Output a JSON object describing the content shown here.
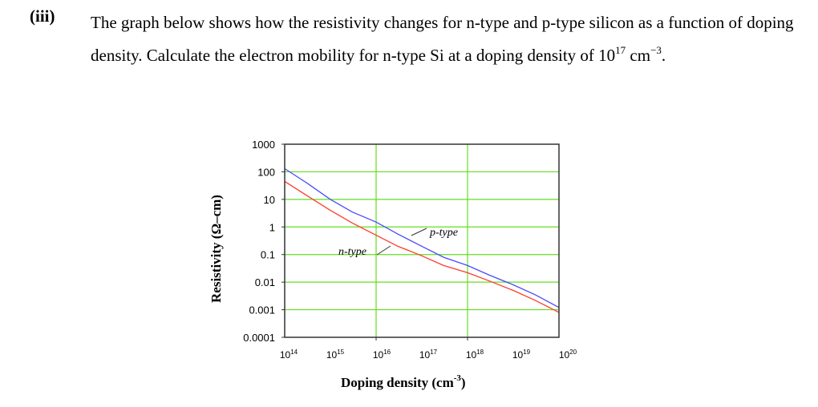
{
  "question": {
    "number": "(iii)",
    "text_before": "The graph below shows how the resistivity changes for n-type and p-type silicon as a function of doping density. Calculate the electron mobility for n-type Si at a doping density of 10",
    "exponent": "17",
    "unit": " cm",
    "unit_exponent": "−3",
    "text_end": "."
  },
  "chart_data": {
    "type": "line",
    "title": "",
    "xlabel": "Doping density (cm",
    "xlabel_exponent": "-3",
    "xlabel_end": ")",
    "ylabel": "Resistivity (Ω–cm)",
    "x_scale": "log",
    "y_scale": "log",
    "xlim": [
      100000000000000.0,
      1e+20
    ],
    "ylim": [
      0.0001,
      1000
    ],
    "x_tick_labels": [
      {
        "base": "10",
        "exp": "14"
      },
      {
        "base": "10",
        "exp": "15"
      },
      {
        "base": "10",
        "exp": "16"
      },
      {
        "base": "10",
        "exp": "17"
      },
      {
        "base": "10",
        "exp": "18"
      },
      {
        "base": "10",
        "exp": "19"
      },
      {
        "base": "10",
        "exp": "20"
      }
    ],
    "y_tick_labels": [
      "0.0001",
      "0.001",
      "0.01",
      "0.1",
      "1",
      "10",
      "100",
      "1000"
    ],
    "grid": {
      "horizontal": true,
      "vertical_at": [
        1e+16,
        1e+18
      ],
      "color": "#66dd22"
    },
    "x": [
      100000000000000.0,
      300000000000000.0,
      1000000000000000.0,
      3000000000000000.0,
      1e+16,
      3e+16,
      1e+17,
      3e+17,
      1e+18,
      3e+18,
      1e+19,
      3e+19,
      1e+20
    ],
    "series": [
      {
        "name": "p-type",
        "color": "#4a4aff",
        "values": [
          130,
          40,
          10,
          3.5,
          1.5,
          0.55,
          0.2,
          0.08,
          0.04,
          0.018,
          0.008,
          0.0035,
          0.0012
        ]
      },
      {
        "name": "n-type",
        "color": "#ff3b2b",
        "values": [
          45,
          14,
          4,
          1.4,
          0.5,
          0.2,
          0.09,
          0.04,
          0.022,
          0.011,
          0.005,
          0.0022,
          0.0008
        ]
      }
    ],
    "annotations": [
      "p-type",
      "n-type"
    ]
  }
}
